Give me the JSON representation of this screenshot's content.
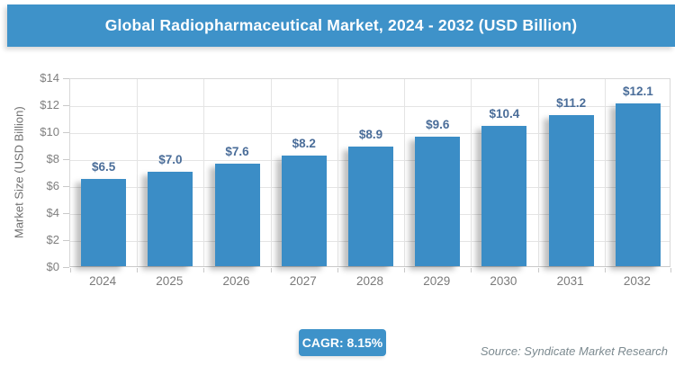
{
  "header": {
    "title": "Global Radiopharmaceutical Market, 2024 - 2032 (USD Billion)"
  },
  "footer": {
    "cagr_label": "CAGR: 8.15%",
    "source": "Source: Syndicate Market Research"
  },
  "colors": {
    "accent_blue": "#3e92c9",
    "bar_blue": "#3b8dc6",
    "value_label_blue": "#4a6d99",
    "axis_text_gray": "#7f7f7f",
    "gridline_gray": "#e4e4e4",
    "source_text_gray": "#7c8a90"
  },
  "chart_data": {
    "type": "bar",
    "title": "Global Radiopharmaceutical Market, 2024 - 2032 (USD Billion)",
    "categories": [
      "2024",
      "2025",
      "2026",
      "2027",
      "2028",
      "2029",
      "2030",
      "2031",
      "2032"
    ],
    "values": [
      6.5,
      7.0,
      7.6,
      8.2,
      8.9,
      9.6,
      10.4,
      11.2,
      12.1
    ],
    "value_labels": [
      "$6.5",
      "$7.0",
      "$7.6",
      "$8.2",
      "$8.9",
      "$9.6",
      "$10.4",
      "$11.2",
      "$12.1"
    ],
    "xlabel": "",
    "ylabel": "Market Size (USD Billion)",
    "ylim": [
      0,
      14
    ],
    "ytick_step": 2,
    "ytick_labels": [
      "$0",
      "$2",
      "$4",
      "$6",
      "$8",
      "$10",
      "$12",
      "$14"
    ],
    "grid": true,
    "legend_position": "none"
  }
}
